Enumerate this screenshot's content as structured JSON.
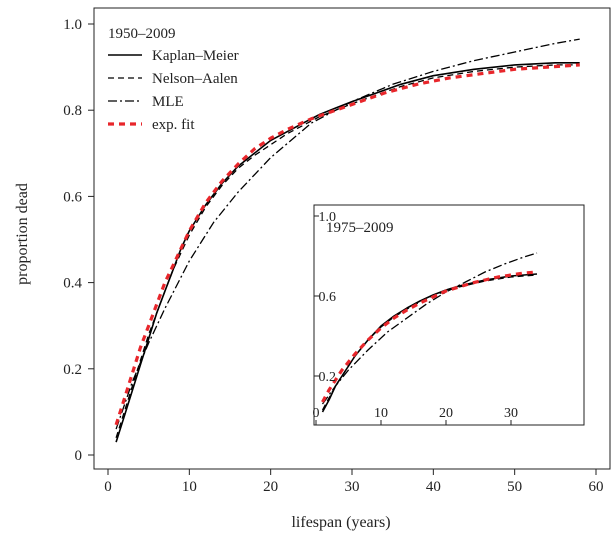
{
  "chart_data": [
    {
      "type": "line",
      "title": "1950–2009",
      "xlabel": "lifespan (years)",
      "ylabel": "proportion dead",
      "xlim": [
        0,
        60
      ],
      "ylim": [
        0,
        1.0
      ],
      "xticks": [
        0,
        10,
        20,
        30,
        40,
        50,
        60
      ],
      "yticks": [
        0,
        0.2,
        0.4,
        0.6,
        0.8,
        1.0
      ],
      "xtick_labels": [
        "0",
        "10",
        "20",
        "30",
        "40",
        "50",
        "60"
      ],
      "ytick_labels": [
        "0",
        "0.2",
        "0.4",
        "0.6",
        "0.8",
        "1.0"
      ],
      "legend_position": "top-left",
      "grid": false,
      "series": [
        {
          "name": "Kaplan–Meier",
          "style": "solid",
          "color": "#000000",
          "x": [
            1,
            2,
            3,
            4,
            5,
            6,
            7,
            8,
            9,
            10,
            12,
            14,
            16,
            18,
            20,
            22,
            24,
            26,
            28,
            30,
            33,
            36,
            40,
            45,
            50,
            55,
            58
          ],
          "y": [
            0.03,
            0.09,
            0.15,
            0.21,
            0.27,
            0.33,
            0.38,
            0.43,
            0.48,
            0.52,
            0.58,
            0.63,
            0.67,
            0.7,
            0.73,
            0.75,
            0.77,
            0.79,
            0.805,
            0.82,
            0.84,
            0.86,
            0.88,
            0.895,
            0.905,
            0.91,
            0.91
          ]
        },
        {
          "name": "Nelson–Aalen",
          "style": "dashed",
          "color": "#000000",
          "x": [
            1,
            2,
            3,
            4,
            5,
            6,
            7,
            8,
            9,
            10,
            12,
            14,
            16,
            18,
            20,
            22,
            24,
            26,
            28,
            30,
            33,
            36,
            40,
            45,
            50,
            55,
            58
          ],
          "y": [
            0.04,
            0.1,
            0.16,
            0.22,
            0.28,
            0.33,
            0.38,
            0.43,
            0.47,
            0.51,
            0.575,
            0.625,
            0.665,
            0.695,
            0.72,
            0.745,
            0.765,
            0.785,
            0.8,
            0.815,
            0.835,
            0.855,
            0.875,
            0.89,
            0.9,
            0.905,
            0.905
          ]
        },
        {
          "name": "MLE",
          "style": "dashdot",
          "color": "#000000",
          "x": [
            1,
            3,
            5,
            7,
            10,
            13,
            16,
            20,
            25,
            30,
            35,
            40,
            45,
            50,
            55,
            58
          ],
          "y": [
            0.06,
            0.17,
            0.26,
            0.34,
            0.45,
            0.54,
            0.61,
            0.69,
            0.77,
            0.82,
            0.86,
            0.89,
            0.915,
            0.935,
            0.955,
            0.965
          ]
        },
        {
          "name": "exp. fit",
          "style": "thick-dashed",
          "color": "#e8262b",
          "x": [
            1,
            2,
            3,
            4,
            5,
            6,
            7,
            8,
            9,
            10,
            12,
            14,
            16,
            18,
            20,
            22,
            25,
            28,
            31,
            34,
            38,
            42,
            46,
            50,
            54,
            58
          ],
          "y": [
            0.07,
            0.13,
            0.19,
            0.25,
            0.3,
            0.35,
            0.4,
            0.44,
            0.48,
            0.52,
            0.585,
            0.635,
            0.675,
            0.71,
            0.735,
            0.755,
            0.78,
            0.8,
            0.82,
            0.84,
            0.86,
            0.875,
            0.885,
            0.895,
            0.9,
            0.905
          ]
        }
      ]
    },
    {
      "type": "line",
      "title": "1975–2009",
      "xlabel": "",
      "ylabel": "",
      "xlim": [
        0,
        36
      ],
      "ylim": [
        0.05,
        1.05
      ],
      "xticks": [
        0,
        10,
        20,
        30
      ],
      "yticks": [
        0.2,
        0.6,
        1.0
      ],
      "xtick_labels": [
        "0",
        "10",
        "20",
        "30"
      ],
      "ytick_labels": [
        "0.2",
        "0.6",
        "1.0"
      ],
      "grid": false,
      "series": [
        {
          "name": "Kaplan–Meier",
          "style": "solid",
          "color": "#000000",
          "x": [
            1,
            2,
            3,
            4,
            5,
            6,
            8,
            10,
            12,
            14,
            16,
            18,
            20,
            22,
            24,
            26,
            28,
            30,
            32,
            34
          ],
          "y": [
            0.02,
            0.08,
            0.15,
            0.2,
            0.25,
            0.3,
            0.38,
            0.45,
            0.5,
            0.54,
            0.575,
            0.605,
            0.63,
            0.65,
            0.665,
            0.68,
            0.69,
            0.7,
            0.705,
            0.71
          ]
        },
        {
          "name": "Nelson–Aalen",
          "style": "dashed",
          "color": "#000000",
          "x": [
            1,
            2,
            3,
            4,
            5,
            6,
            8,
            10,
            12,
            14,
            16,
            18,
            20,
            22,
            24,
            26,
            28,
            30,
            32,
            34
          ],
          "y": [
            0.03,
            0.09,
            0.15,
            0.2,
            0.25,
            0.3,
            0.38,
            0.445,
            0.495,
            0.535,
            0.57,
            0.6,
            0.625,
            0.645,
            0.66,
            0.675,
            0.685,
            0.695,
            0.7,
            0.705
          ]
        },
        {
          "name": "MLE",
          "style": "dashdot",
          "color": "#000000",
          "x": [
            1,
            3,
            5,
            8,
            11,
            14,
            17,
            20,
            23,
            26,
            29,
            32,
            34
          ],
          "y": [
            0.06,
            0.15,
            0.23,
            0.33,
            0.42,
            0.49,
            0.56,
            0.62,
            0.67,
            0.72,
            0.76,
            0.795,
            0.815
          ]
        },
        {
          "name": "exp. fit",
          "style": "thick-dashed",
          "color": "#e8262b",
          "x": [
            1,
            2,
            3,
            4,
            5,
            6,
            8,
            10,
            12,
            14,
            16,
            18,
            20,
            22,
            24,
            26,
            28,
            30,
            32,
            34
          ],
          "y": [
            0.07,
            0.13,
            0.18,
            0.23,
            0.27,
            0.31,
            0.38,
            0.44,
            0.49,
            0.53,
            0.565,
            0.595,
            0.625,
            0.645,
            0.665,
            0.68,
            0.695,
            0.705,
            0.715,
            0.72
          ]
        }
      ]
    }
  ]
}
